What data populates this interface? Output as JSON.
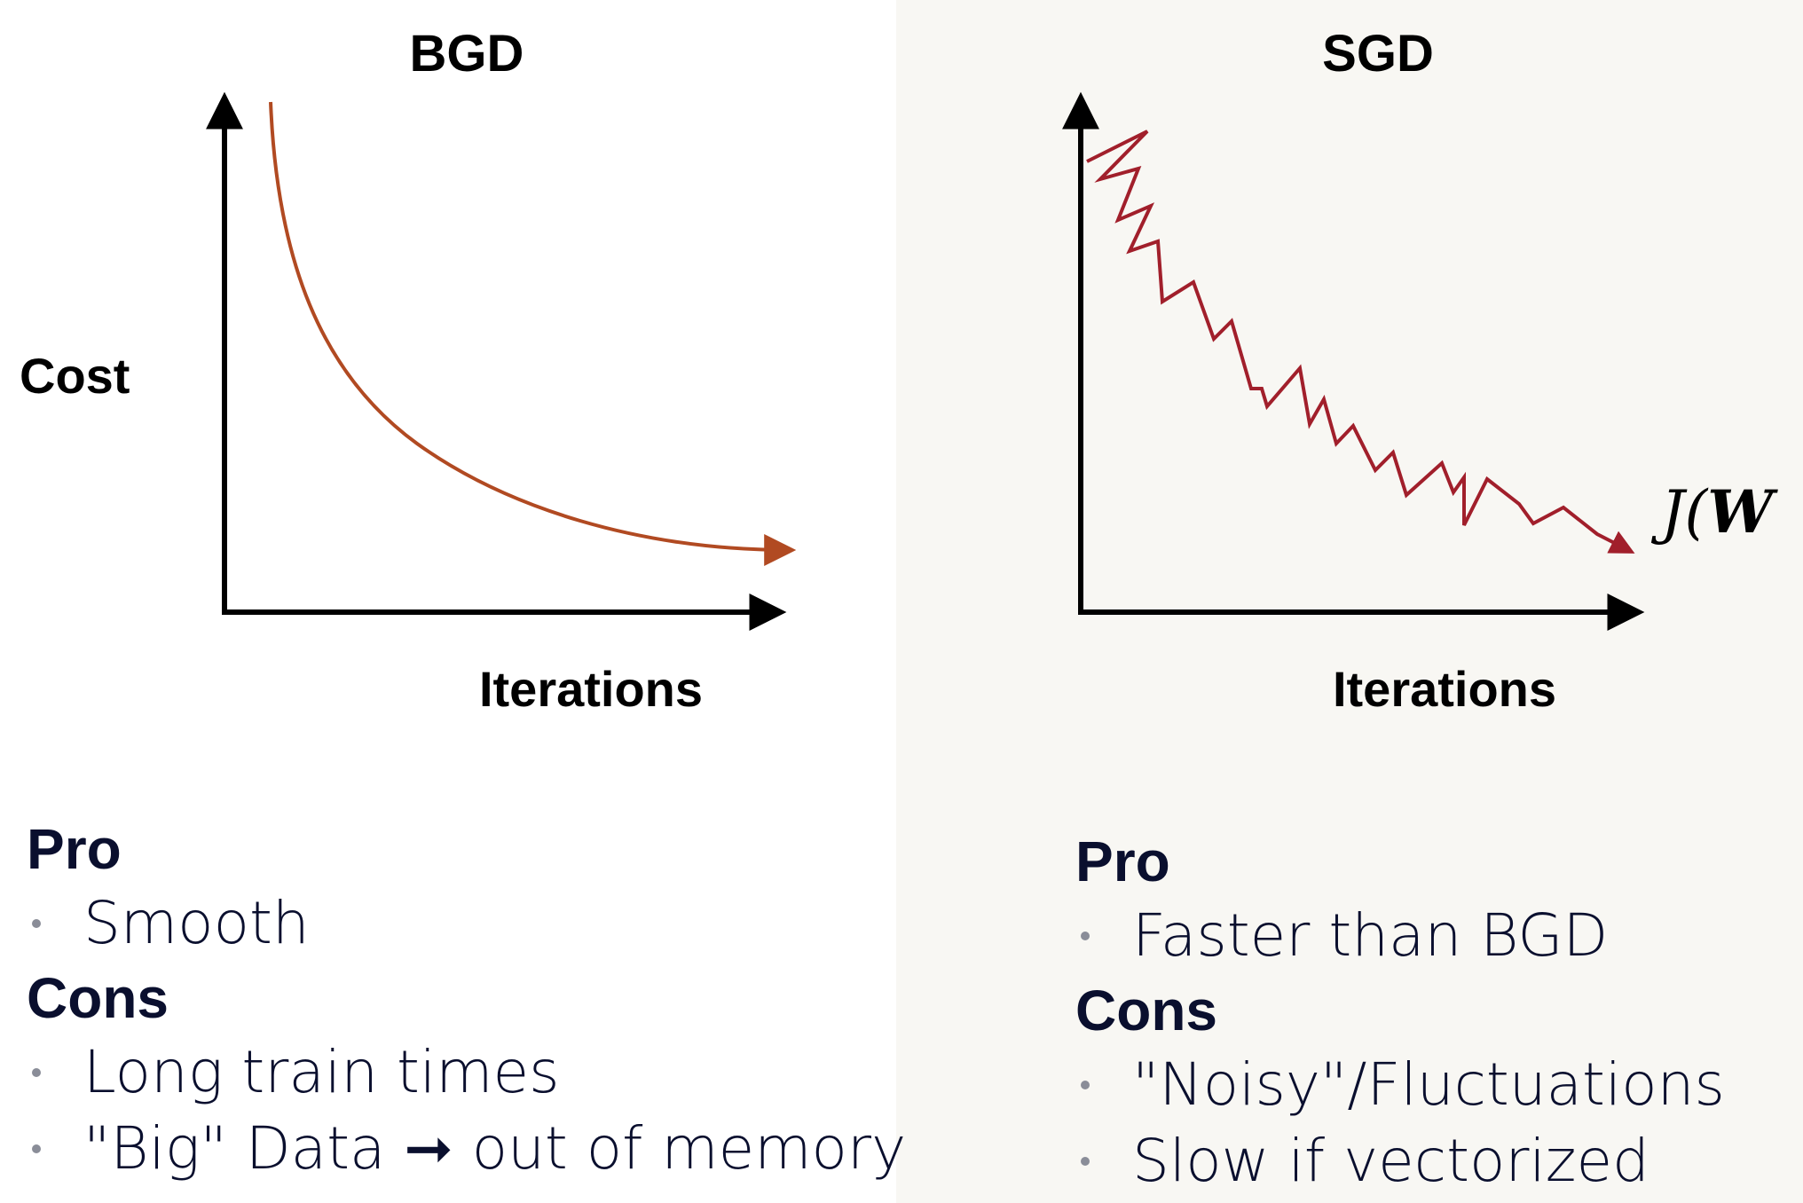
{
  "panels": {
    "bgd": {
      "title": "BGD",
      "y_label": "Cost",
      "x_label": "Iterations",
      "curve_color": "#b14a22",
      "pro_heading": "Pro",
      "pros": [
        "Smooth"
      ],
      "cons_heading": "Cons",
      "cons": [
        "Long train times",
        "\"Big\" Data ➞ out of memory"
      ]
    },
    "sgd": {
      "title": "SGD",
      "x_label": "Iterations",
      "curve_color": "#a11f2b",
      "formula_prefix": "J(",
      "formula_symbol": "W",
      "pro_heading": "Pro",
      "pros": [
        "Faster than BGD"
      ],
      "cons_heading": "Cons",
      "cons": [
        "\"Noisy\"/Fluctuations",
        "Slow if vectorized"
      ]
    }
  },
  "colors": {
    "axis": "#000000",
    "text": "#0a0f2e",
    "right_panel_bg": "#f8f7f3"
  }
}
